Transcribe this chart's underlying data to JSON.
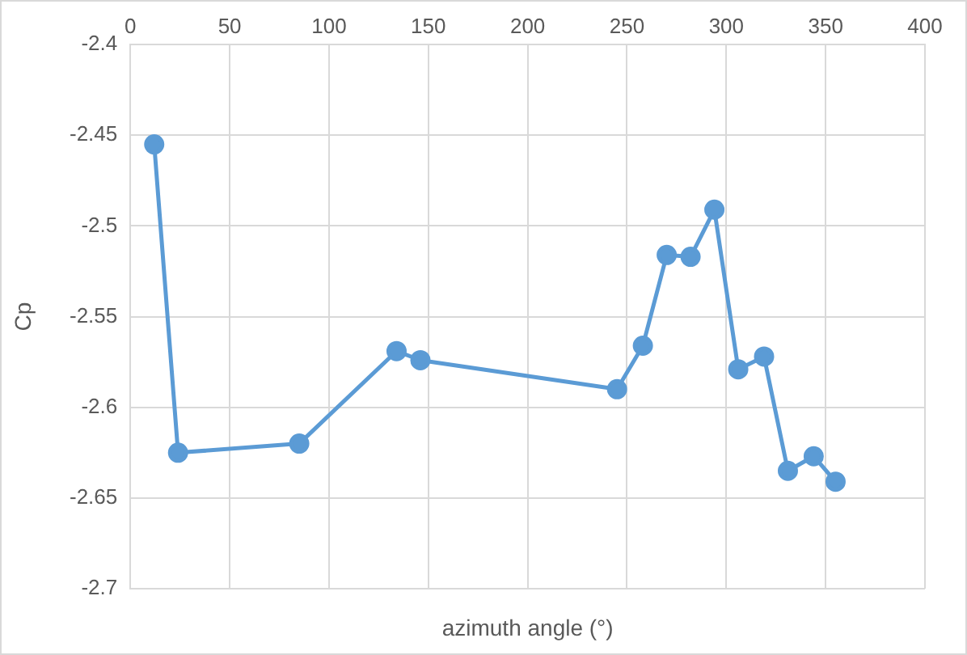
{
  "chart_data": {
    "type": "line",
    "xlabel": "azimuth angle (°)",
    "ylabel": "Cp",
    "series": [
      {
        "color": "#5b9bd5",
        "x": [
          12,
          24,
          85,
          134,
          146,
          245,
          258,
          270,
          282,
          294,
          306,
          319,
          331,
          344,
          355
        ],
        "values": [
          -2.455,
          -2.625,
          -2.62,
          -2.569,
          -2.574,
          -2.59,
          -2.566,
          -2.516,
          -2.517,
          -2.491,
          -2.579,
          -2.572,
          -2.635,
          -2.627,
          -2.641
        ]
      }
    ],
    "xlim": [
      0,
      400
    ],
    "xticks": [
      0,
      50,
      100,
      150,
      200,
      250,
      300,
      350,
      400
    ],
    "ylim": [
      -2.7,
      -2.4
    ],
    "yticks": [
      -2.7,
      -2.65,
      -2.6,
      -2.55,
      -2.5,
      -2.45,
      -2.4
    ],
    "grid": true,
    "legend": false,
    "marker": "circle",
    "line_style": "solid"
  }
}
